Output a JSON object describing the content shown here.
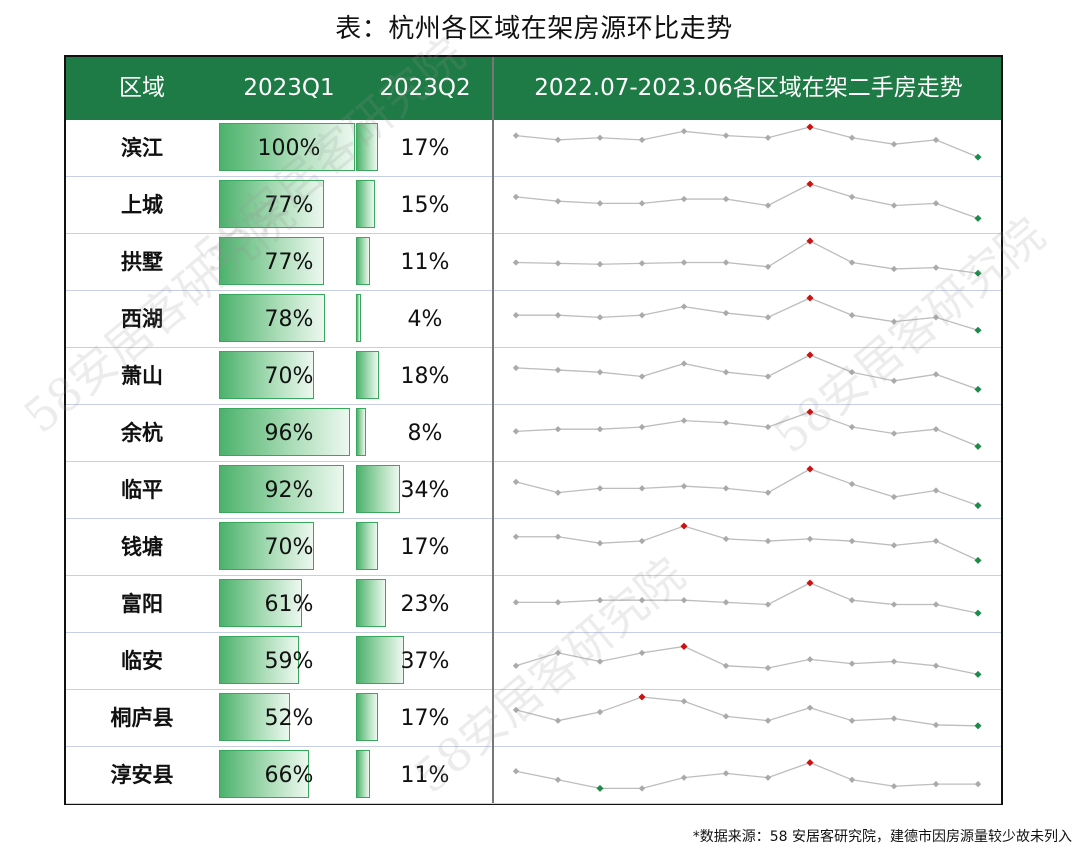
{
  "title": "表：杭州各区域在架房源环比走势",
  "header": {
    "col_region": "区域",
    "col_q1": "2023Q1",
    "col_q2": "2023Q2",
    "col_trend": "2022.07-2023.06各区域在架二手房走势"
  },
  "rows": [
    {
      "name": "滨江",
      "q1": "100%",
      "q2": "17%"
    },
    {
      "name": "上城",
      "q1": "77%",
      "q2": "15%"
    },
    {
      "name": "拱墅",
      "q1": "77%",
      "q2": "11%"
    },
    {
      "name": "西湖",
      "q1": "78%",
      "q2": "4%"
    },
    {
      "name": "萧山",
      "q1": "70%",
      "q2": "18%"
    },
    {
      "name": "余杭",
      "q1": "96%",
      "q2": "8%"
    },
    {
      "name": "临平",
      "q1": "92%",
      "q2": "34%"
    },
    {
      "name": "钱塘",
      "q1": "70%",
      "q2": "17%"
    },
    {
      "name": "富阳",
      "q1": "61%",
      "q2": "23%"
    },
    {
      "name": "临安",
      "q1": "59%",
      "q2": "37%"
    },
    {
      "name": "桐庐县",
      "q1": "52%",
      "q2": "17%"
    },
    {
      "name": "淳安县",
      "q1": "66%",
      "q2": "11%"
    }
  ],
  "watermark_text": "58安居客研究院",
  "footnote": "*数据来源：58 安居客研究院，建德市因房源量较少故未列入",
  "colors": {
    "header_bg": "#1e7b45",
    "bar": "#4cb26c",
    "max_point": "#cc1111",
    "min_point": "#1e8a4a",
    "line": "#bdbdbd",
    "point": "#aaaaaa"
  },
  "chart_data": {
    "type": "table",
    "title": "表：杭州各区域在架房源环比走势",
    "categories": [
      "滨江",
      "上城",
      "拱墅",
      "西湖",
      "萧山",
      "余杭",
      "临平",
      "钱塘",
      "富阳",
      "临安",
      "桐庐县",
      "淳安县"
    ],
    "series": [
      {
        "name": "2023Q1",
        "values": [
          100,
          77,
          77,
          78,
          70,
          96,
          92,
          70,
          61,
          59,
          52,
          66
        ]
      },
      {
        "name": "2023Q2",
        "values": [
          17,
          15,
          11,
          4,
          18,
          8,
          34,
          17,
          23,
          37,
          17,
          11
        ]
      }
    ],
    "bar_max": {
      "q1": 100,
      "q2": 37
    },
    "sparklines": {
      "x": [
        "2022.07",
        "2022.08",
        "2022.09",
        "2022.10",
        "2022.11",
        "2022.12",
        "2023.01",
        "2023.02",
        "2023.03",
        "2023.04",
        "2023.05",
        "2023.06"
      ],
      "series": [
        {
          "name": "滨江",
          "values": [
            8,
            7,
            7.5,
            7,
            9,
            8,
            7.5,
            10,
            7.5,
            6,
            7,
            3
          ]
        },
        {
          "name": "上城",
          "values": [
            7,
            6,
            5.5,
            5.5,
            6.5,
            6.5,
            5,
            10,
            7,
            5,
            5.5,
            2
          ]
        },
        {
          "name": "拱墅",
          "values": [
            5,
            4.8,
            4.6,
            4.8,
            5,
            5,
            4,
            10,
            5,
            3.5,
            3.8,
            2.5
          ]
        },
        {
          "name": "西湖",
          "values": [
            6,
            6,
            5.5,
            6,
            8,
            6.5,
            5.5,
            10,
            6,
            4.5,
            5.5,
            2.5
          ]
        },
        {
          "name": "萧山",
          "values": [
            7,
            6.5,
            6,
            5,
            8,
            6,
            5,
            10,
            6,
            4,
            5.5,
            2
          ]
        },
        {
          "name": "余杭",
          "values": [
            5.5,
            6,
            6,
            6.5,
            8,
            7.5,
            6.5,
            10,
            6.5,
            5,
            6,
            2
          ]
        },
        {
          "name": "临平",
          "values": [
            7,
            4.5,
            5.5,
            5.5,
            6,
            5.5,
            4.5,
            10,
            6.5,
            3.5,
            5,
            1.5
          ]
        },
        {
          "name": "钱塘",
          "values": [
            7.5,
            7.5,
            6,
            6.5,
            10,
            7,
            6.5,
            7,
            6.5,
            5.5,
            6.5,
            2
          ]
        },
        {
          "name": "富阳",
          "values": [
            5.5,
            5.5,
            6,
            6,
            6,
            5.5,
            5,
            10,
            6,
            5,
            5,
            3
          ]
        },
        {
          "name": "临安",
          "values": [
            4,
            7,
            5,
            7,
            8.5,
            4,
            3.5,
            5.5,
            4.5,
            5,
            4,
            2
          ]
        },
        {
          "name": "桐庐县",
          "values": [
            7,
            4.5,
            6.5,
            10,
            9,
            5.5,
            4.5,
            7.5,
            4.5,
            5,
            3.5,
            3.3
          ]
        },
        {
          "name": "淳安县",
          "values": [
            6,
            4,
            2,
            2,
            4.5,
            5.5,
            4.5,
            8,
            4,
            2.5,
            3,
            3
          ]
        }
      ]
    }
  }
}
